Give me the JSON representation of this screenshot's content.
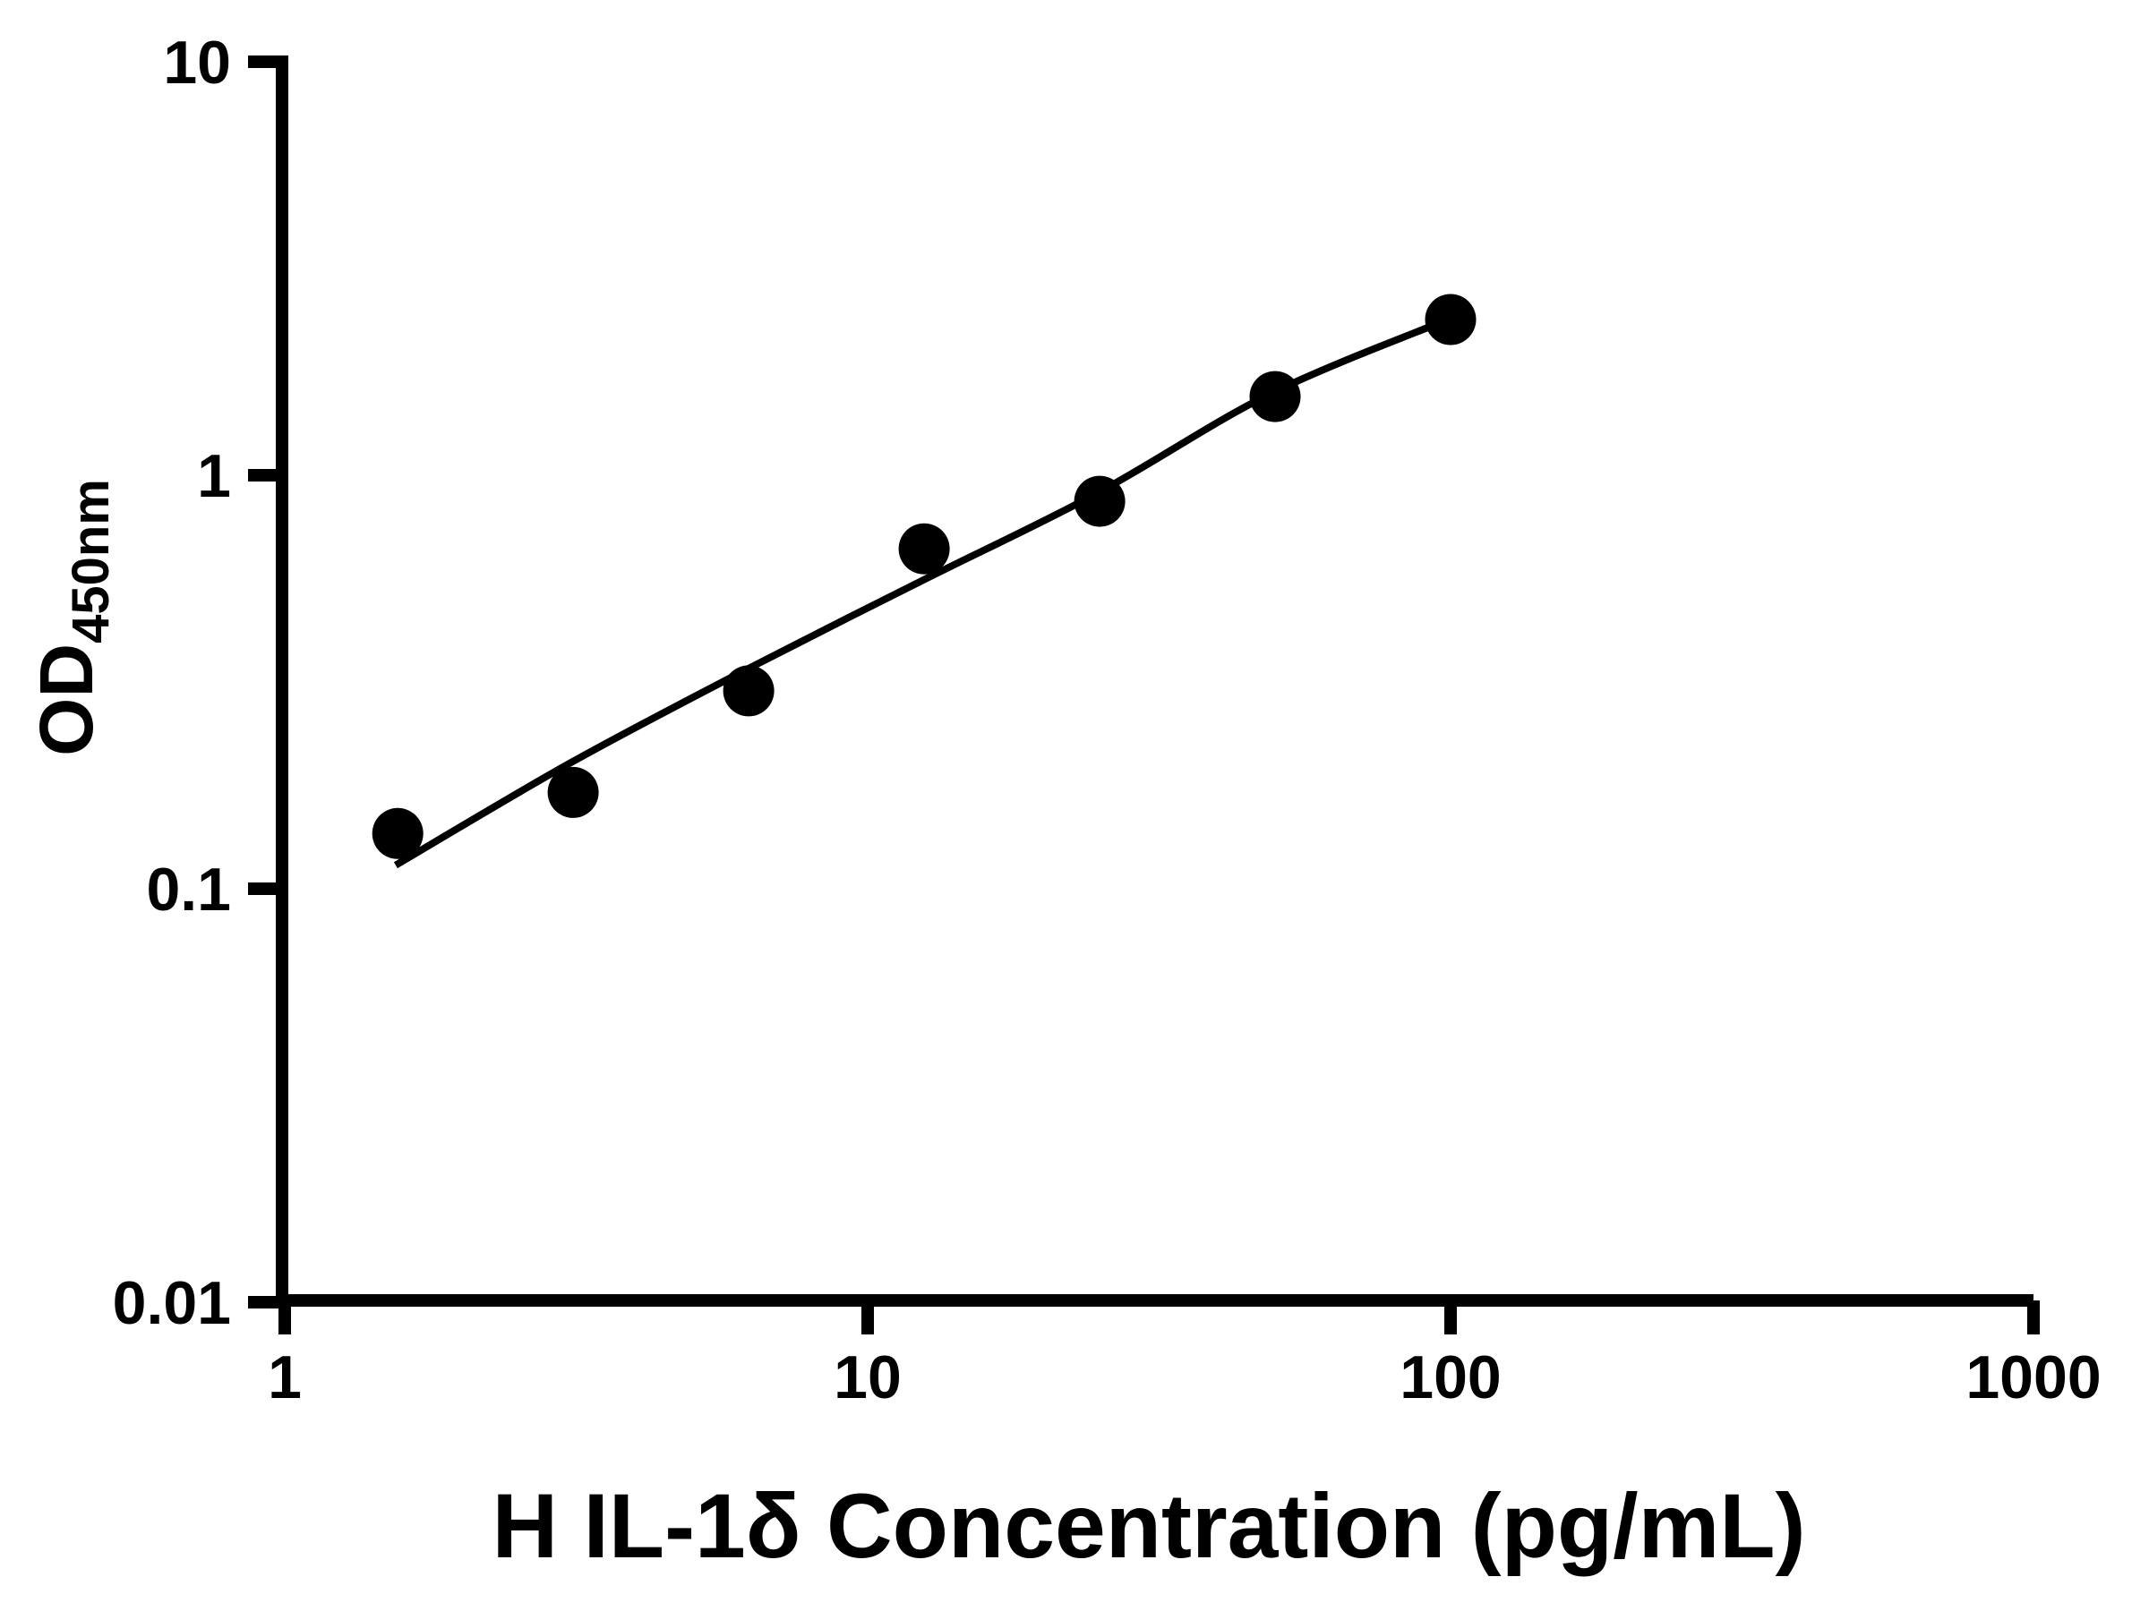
{
  "figure": {
    "background_color": "#ffffff",
    "ink_color": "#000000"
  },
  "chart_data": {
    "type": "scatter",
    "title": "",
    "xlabel": "H IL-1δ Concentration (pg/mL)",
    "ylabel_main": "OD",
    "ylabel_sub": "450nm",
    "x_scale": "log10",
    "y_scale": "log10",
    "xlim": [
      1,
      1000
    ],
    "ylim": [
      0.01,
      10
    ],
    "x_tick_values": [
      1,
      10,
      100,
      1000
    ],
    "x_tick_labels": [
      "1",
      "10",
      "100",
      "1000"
    ],
    "y_tick_values": [
      0.01,
      0.1,
      1,
      10
    ],
    "y_tick_labels": [
      "0.01",
      "0.1",
      "1",
      "10"
    ],
    "grid": false,
    "legend": "none",
    "marker": {
      "shape": "filled-circle",
      "color": "#000000"
    },
    "series": [
      {
        "name": "standard-curve-points",
        "x": [
          1.5625,
          3.125,
          6.25,
          12.5,
          25,
          50,
          100
        ],
        "y": [
          0.136,
          0.171,
          0.301,
          0.664,
          0.865,
          1.55,
          2.38
        ]
      }
    ],
    "fit_curve": {
      "x": [
        1.55,
        3.1,
        6.2,
        12.3,
        24.6,
        48.9,
        98.9
      ],
      "y": [
        0.114,
        0.202,
        0.339,
        0.553,
        0.9,
        1.57,
        2.38
      ]
    }
  }
}
